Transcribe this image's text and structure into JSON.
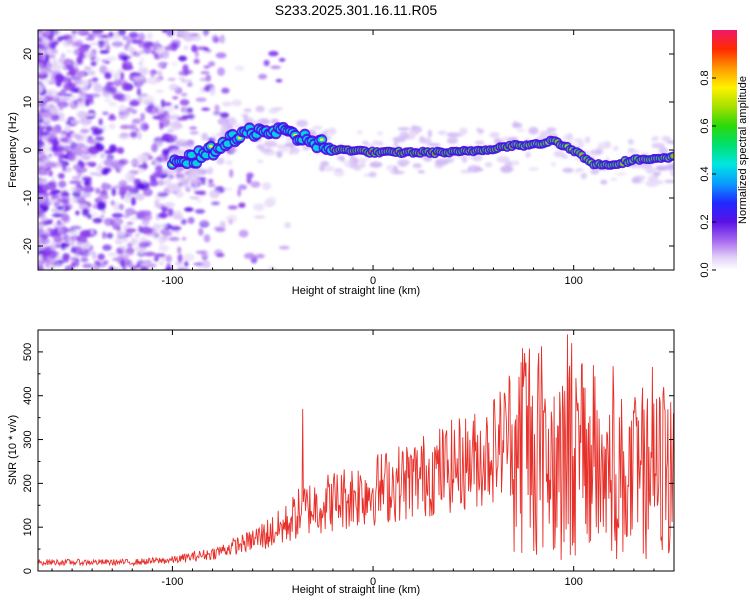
{
  "title": "S233.2025.301.16.11.R05",
  "chart_data": [
    {
      "type": "heatmap",
      "name": "spectrogram",
      "xlabel": "Height of straight line (km)",
      "ylabel": "Frequency (Hz)",
      "xlim": [
        -167,
        150
      ],
      "ylim": [
        -25,
        25
      ],
      "xticks": [
        -100,
        0,
        100
      ],
      "yticks": [
        -20,
        -10,
        0,
        10,
        20
      ],
      "colorbar": {
        "label": "Normalized spectral amplitude",
        "range": [
          0,
          1
        ],
        "ticks": [
          0.0,
          0.2,
          0.4,
          0.6,
          0.8
        ]
      },
      "ridge": [
        {
          "x": -100,
          "f": -3
        },
        {
          "x": -90,
          "f": -2
        },
        {
          "x": -80,
          "f": 0
        },
        {
          "x": -70,
          "f": 2
        },
        {
          "x": -60,
          "f": 4
        },
        {
          "x": -50,
          "f": 4
        },
        {
          "x": -40,
          "f": 3
        },
        {
          "x": -30,
          "f": 2
        },
        {
          "x": -20,
          "f": 0
        },
        {
          "x": -10,
          "f": 0
        },
        {
          "x": 0,
          "f": -0.5
        },
        {
          "x": 20,
          "f": -0.5
        },
        {
          "x": 40,
          "f": -0.5
        },
        {
          "x": 55,
          "f": 0
        },
        {
          "x": 70,
          "f": 1
        },
        {
          "x": 80,
          "f": 1
        },
        {
          "x": 90,
          "f": 2
        },
        {
          "x": 100,
          "f": 0
        },
        {
          "x": 110,
          "f": -3
        },
        {
          "x": 120,
          "f": -3
        },
        {
          "x": 130,
          "f": -2
        },
        {
          "x": 140,
          "f": -2
        },
        {
          "x": 150,
          "f": -1.5
        }
      ]
    },
    {
      "type": "line",
      "name": "snr",
      "xlabel": "Height of straight line (km)",
      "ylabel": "SNR (10 * v/v)",
      "xlim": [
        -167,
        150
      ],
      "ylim": [
        0,
        550
      ],
      "xticks": [
        -100,
        0,
        100
      ],
      "yticks": [
        0,
        100,
        200,
        300,
        400,
        500
      ],
      "color": "#e8302a",
      "trend": [
        {
          "x": -167,
          "y": 20
        },
        {
          "x": -120,
          "y": 20
        },
        {
          "x": -100,
          "y": 25
        },
        {
          "x": -80,
          "y": 40
        },
        {
          "x": -60,
          "y": 70
        },
        {
          "x": -45,
          "y": 100
        },
        {
          "x": -35,
          "y": 140
        },
        {
          "x": -20,
          "y": 160
        },
        {
          "x": 0,
          "y": 185
        },
        {
          "x": 20,
          "y": 210
        },
        {
          "x": 40,
          "y": 240
        },
        {
          "x": 55,
          "y": 260
        },
        {
          "x": 65,
          "y": 300
        },
        {
          "x": 68,
          "y": 330
        },
        {
          "x": 70,
          "y": 250
        },
        {
          "x": 75,
          "y": 310
        },
        {
          "x": 80,
          "y": 300
        },
        {
          "x": 90,
          "y": 250
        },
        {
          "x": 100,
          "y": 260
        },
        {
          "x": 110,
          "y": 230
        },
        {
          "x": 120,
          "y": 220
        },
        {
          "x": 130,
          "y": 210
        },
        {
          "x": 140,
          "y": 220
        },
        {
          "x": 150,
          "y": 230
        }
      ],
      "spikes": [
        {
          "x": -35,
          "y": 370
        },
        {
          "x": 75,
          "y": 420
        },
        {
          "x": 97,
          "y": 540
        },
        {
          "x": 99,
          "y": 520
        },
        {
          "x": 110,
          "y": 470
        },
        {
          "x": 130,
          "y": 360
        },
        {
          "x": 145,
          "y": 420
        },
        {
          "x": 150,
          "y": 360
        }
      ]
    }
  ]
}
